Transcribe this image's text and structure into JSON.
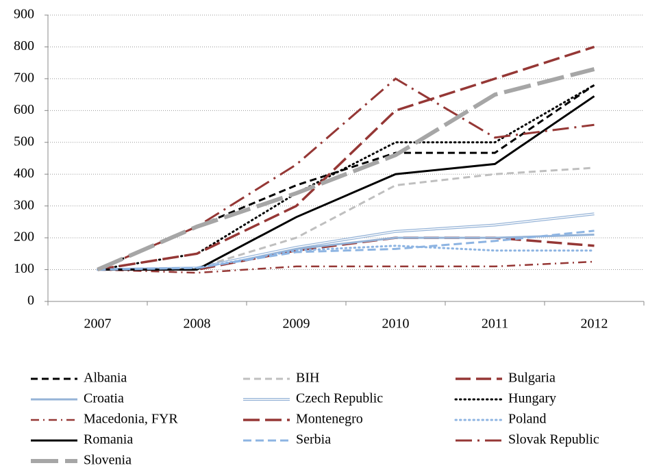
{
  "chart_data": {
    "type": "line",
    "categories": [
      "2007",
      "2008",
      "2009",
      "2010",
      "2011",
      "2012"
    ],
    "ylim": [
      0,
      900
    ],
    "yticks": [
      0,
      100,
      200,
      300,
      400,
      500,
      600,
      700,
      800,
      900
    ],
    "grid": true,
    "series": [
      {
        "name": "Albania",
        "color": "#000000",
        "values": [
          100,
          235,
          365,
          467,
          467,
          680
        ]
      },
      {
        "name": "BIH",
        "color": "#bfbfbf",
        "values": [
          100,
          105,
          200,
          365,
          400,
          420
        ]
      },
      {
        "name": "Bulgaria",
        "color": "#953735",
        "values": [
          100,
          100,
          160,
          200,
          200,
          175
        ]
      },
      {
        "name": "Croatia",
        "color": "#95b3d7",
        "values": [
          100,
          105,
          165,
          200,
          200,
          210
        ]
      },
      {
        "name": "Czech Republic",
        "color": "#95b3d7",
        "values": [
          100,
          105,
          170,
          220,
          240,
          275
        ]
      },
      {
        "name": "Hungary",
        "color": "#000000",
        "values": [
          100,
          150,
          340,
          500,
          500,
          680
        ]
      },
      {
        "name": "Macedonia, FYR",
        "color": "#953735",
        "values": [
          100,
          90,
          110,
          110,
          110,
          125
        ]
      },
      {
        "name": "Montenegro",
        "color": "#953735",
        "values": [
          100,
          150,
          300,
          600,
          700,
          800
        ]
      },
      {
        "name": "Poland",
        "color": "#8db4e2",
        "values": [
          100,
          105,
          160,
          175,
          160,
          160
        ]
      },
      {
        "name": "Romania",
        "color": "#000000",
        "values": [
          100,
          100,
          265,
          400,
          432,
          645
        ]
      },
      {
        "name": "Serbia",
        "color": "#8db4e2",
        "values": [
          100,
          105,
          155,
          165,
          190,
          222
        ]
      },
      {
        "name": "Slovak Republic",
        "color": "#953735",
        "values": [
          100,
          235,
          430,
          700,
          515,
          555
        ]
      },
      {
        "name": "Slovenia",
        "color": "#a6a6a6",
        "values": [
          100,
          235,
          340,
          460,
          650,
          730
        ]
      }
    ]
  }
}
